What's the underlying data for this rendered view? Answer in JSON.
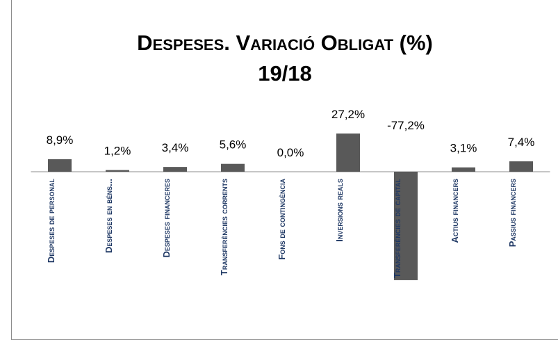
{
  "chart_data": {
    "type": "bar",
    "title": "Despeses. Variació Obligat (%)",
    "subtitle": "19/18",
    "categories": [
      "Despeses de personal",
      "Despeses en béns...",
      "Despeses financeres",
      "Transferències corrents",
      "Fons de contingència",
      "Inversions reals",
      "Transferències de capital",
      "Actius financers",
      "Passius financers"
    ],
    "values": [
      8.9,
      1.2,
      3.4,
      5.6,
      0.0,
      27.2,
      -77.2,
      3.1,
      7.4
    ],
    "value_labels": [
      "8,9%",
      "1,2%",
      "3,4%",
      "5,6%",
      "0,0%",
      "27,2%",
      "-77,2%",
      "3,1%",
      "7,4%"
    ],
    "color": "#595959"
  }
}
